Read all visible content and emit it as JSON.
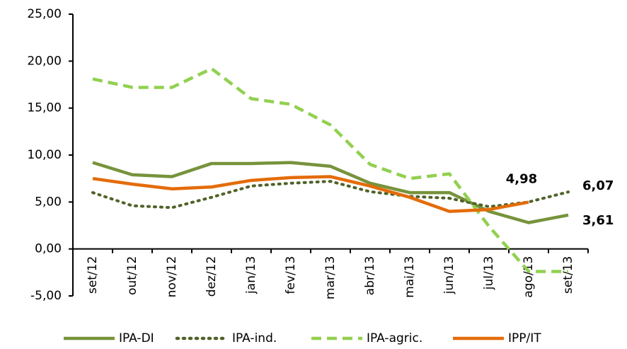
{
  "chart_data": {
    "type": "line",
    "categories": [
      "set/12",
      "out/12",
      "nov/12",
      "dez/12",
      "jan/13",
      "fev/13",
      "mar/13",
      "abr/13",
      "mai/13",
      "jun/13",
      "jul/13",
      "ago/13",
      "set/13"
    ],
    "series": [
      {
        "name": "IPA-DI",
        "color": "#77933c",
        "dash": "solid",
        "values": [
          9.2,
          7.9,
          7.7,
          9.1,
          9.1,
          9.2,
          8.8,
          7.0,
          6.0,
          6.0,
          4.0,
          2.8,
          3.61
        ],
        "value_labels": [
          null,
          null,
          null,
          null,
          null,
          null,
          null,
          null,
          null,
          null,
          null,
          null,
          "3,61"
        ]
      },
      {
        "name": "IPA-ind.",
        "color": "#4f6228",
        "dash": "dotted",
        "values": [
          6.0,
          4.6,
          4.4,
          5.5,
          6.7,
          7.0,
          7.2,
          6.1,
          5.6,
          5.4,
          4.5,
          5.0,
          6.07
        ],
        "value_labels": [
          null,
          null,
          null,
          null,
          null,
          null,
          null,
          null,
          null,
          null,
          null,
          null,
          "6,07"
        ]
      },
      {
        "name": "IPA-agric.",
        "color": "#92d050",
        "dash": "dashed",
        "values": [
          18.1,
          17.2,
          17.2,
          19.2,
          16.0,
          15.4,
          13.2,
          9.0,
          7.5,
          8.0,
          2.4,
          -2.4,
          -2.4
        ]
      },
      {
        "name": "IPP/IT",
        "color": "#e46c0a",
        "dash": "solid",
        "values": [
          7.5,
          6.9,
          6.4,
          6.6,
          7.3,
          7.6,
          7.7,
          6.7,
          5.5,
          4.0,
          4.2,
          4.98,
          null
        ],
        "value_labels": [
          null,
          null,
          null,
          null,
          null,
          null,
          null,
          null,
          null,
          null,
          null,
          "4,98",
          null
        ]
      }
    ],
    "ylim": [
      -5,
      25
    ],
    "yticks": [
      {
        "value": -5,
        "label": "-5,00"
      },
      {
        "value": 0,
        "label": "0,00"
      },
      {
        "value": 5,
        "label": "5,00"
      },
      {
        "value": 10,
        "label": "10,00"
      },
      {
        "value": 15,
        "label": "15,00"
      },
      {
        "value": 20,
        "label": "20,00"
      },
      {
        "value": 25,
        "label": "25,00"
      }
    ],
    "legend": "bottom"
  }
}
